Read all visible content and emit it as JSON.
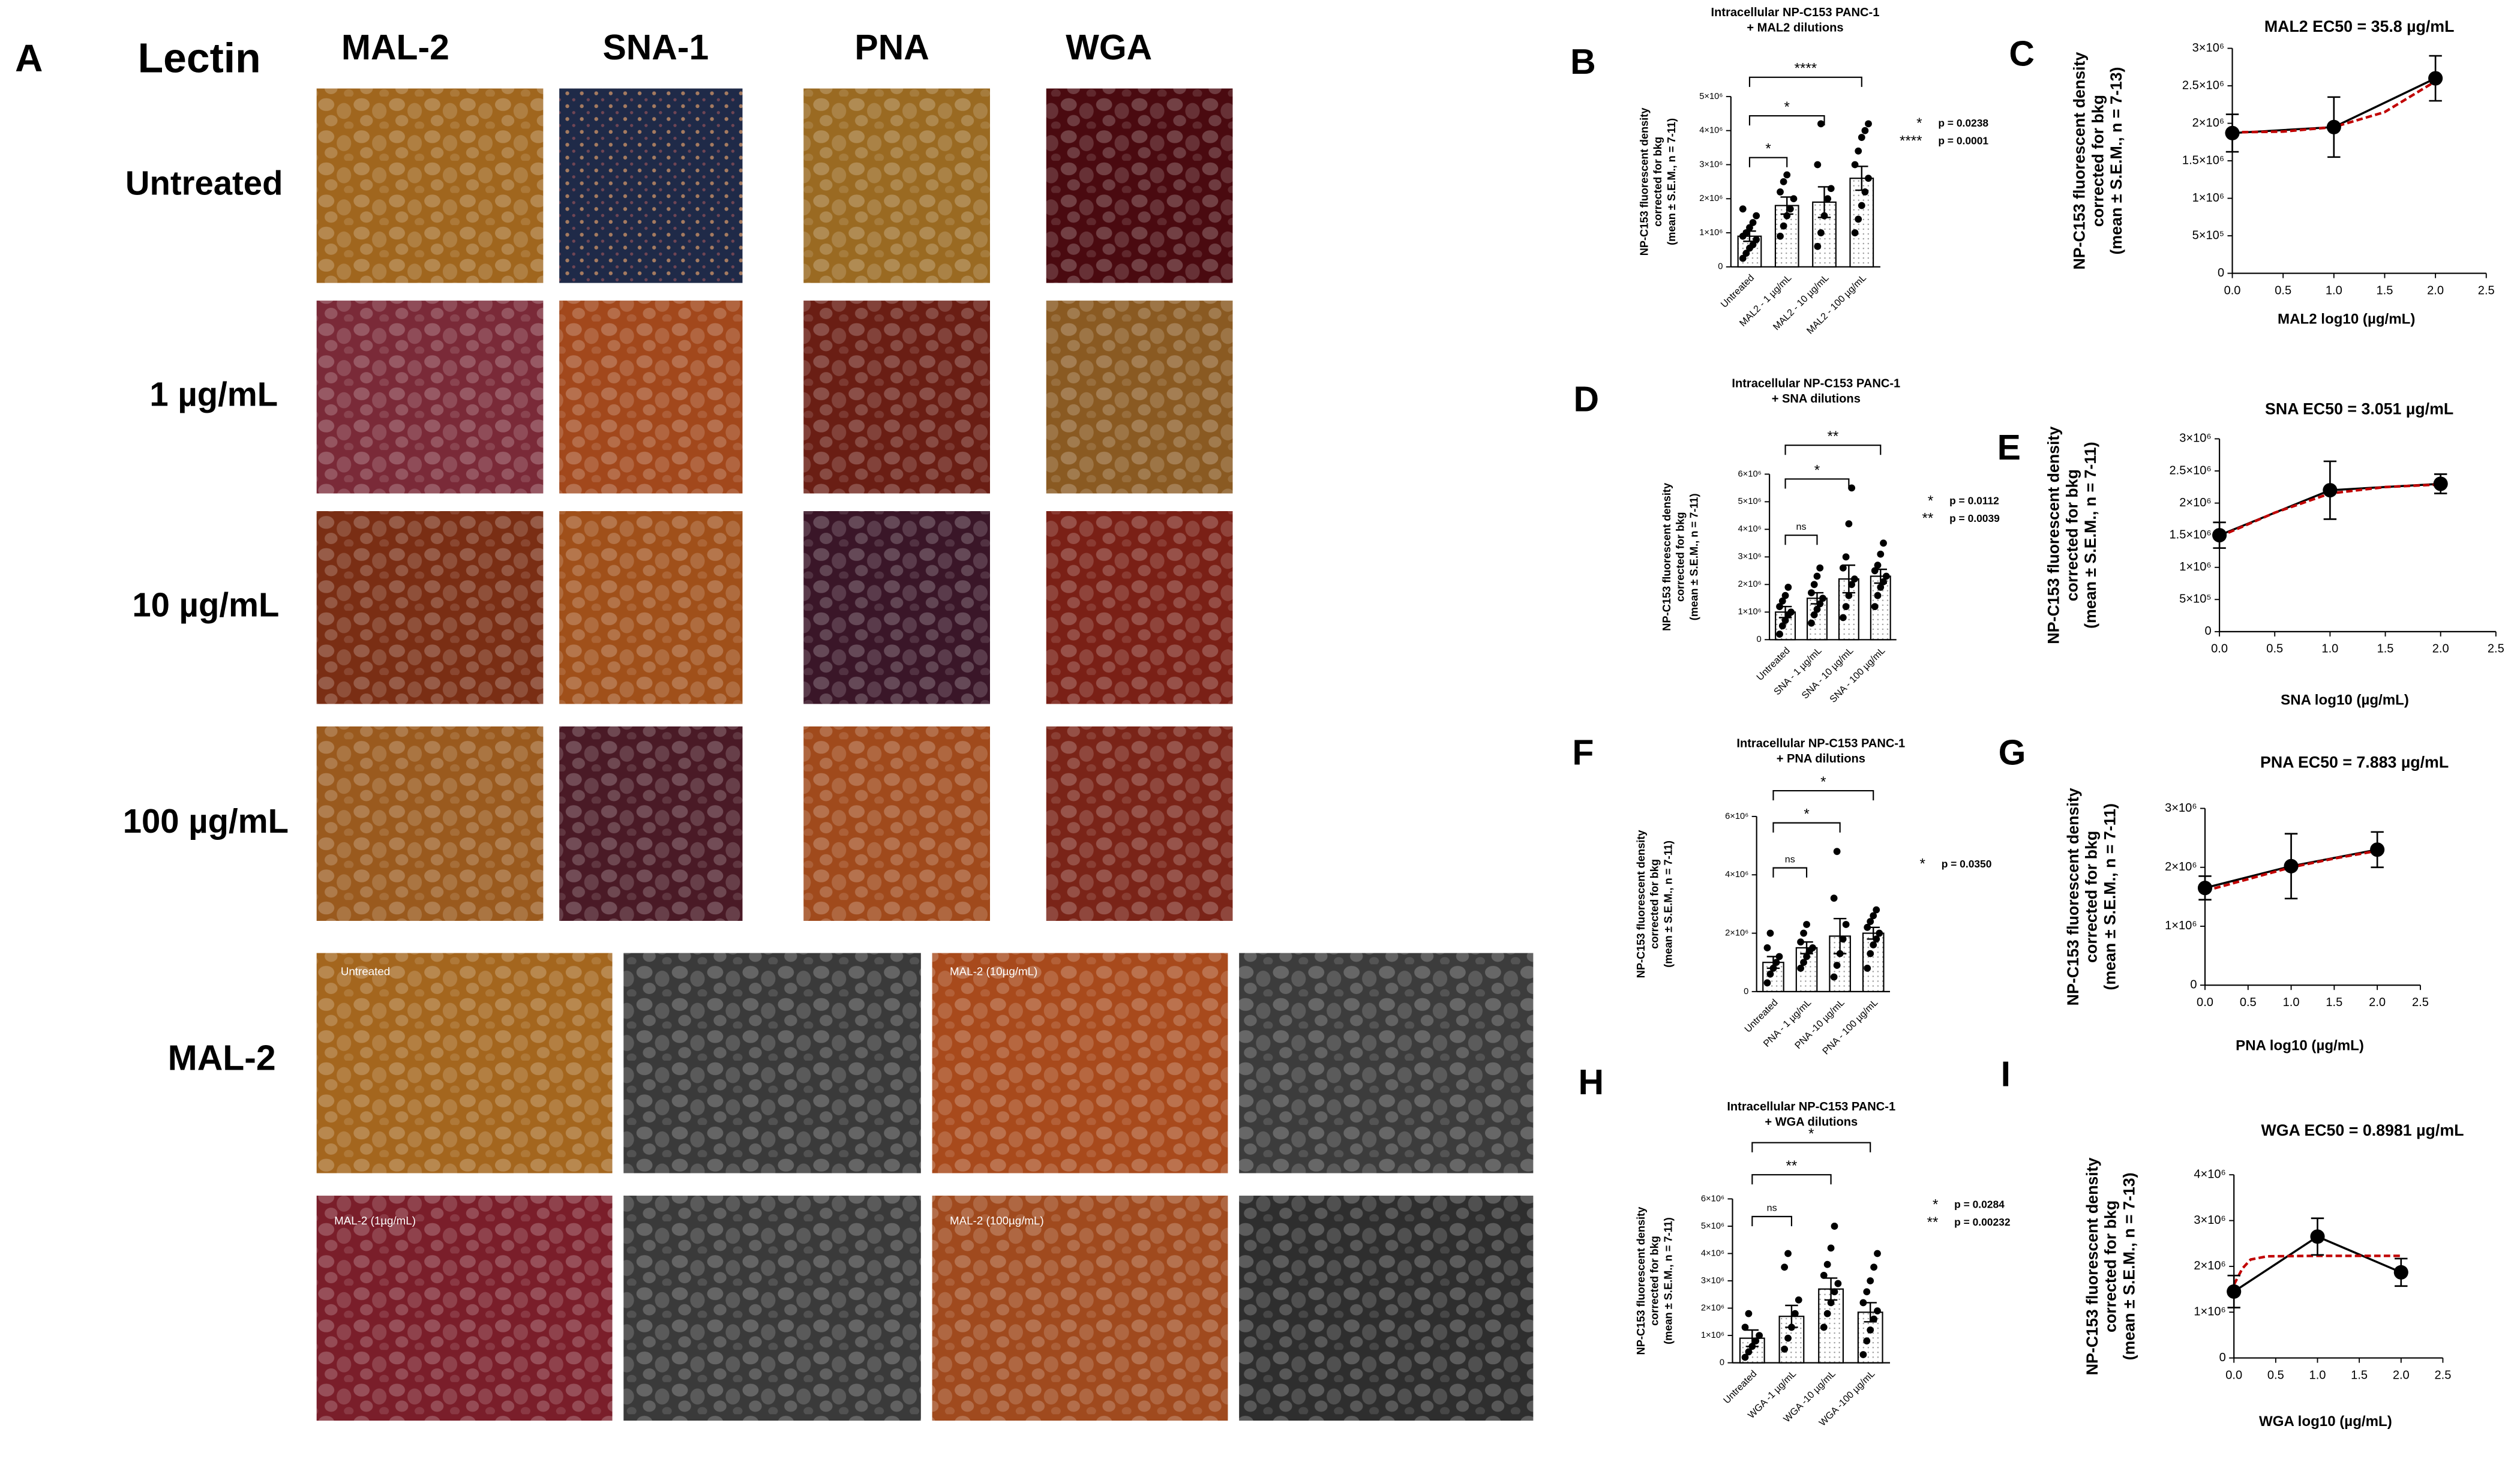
{
  "panel_a": {
    "letter": "A",
    "row_header": "Lectin",
    "columns": [
      "MAL-2",
      "SNA-1",
      "PNA",
      "WGA"
    ],
    "rows": [
      "Untreated",
      "1 µg/mL",
      "10 µg/mL",
      "100 µg/mL"
    ],
    "lower_label": "MAL-2",
    "lower_image_labels": [
      "Untreated",
      "MAL-2 (10µg/mL)",
      "MAL-2 (1µg/mL)",
      "MAL-2 (100µg/mL)"
    ]
  },
  "chart_data": [
    {
      "type": "bar",
      "panel": "B",
      "title": [
        "Intracellular NP-C153 PANC-1",
        "+ MAL2 dilutions"
      ],
      "y_label": [
        "NP-C153 fluorescent density",
        "corrected for bkg",
        "(mean ± S.E.M., n = 7-11)"
      ],
      "categories": [
        "Untreated",
        "MAL2 - 1 µg/mL",
        "MAL2 - 10 µg/mL",
        "MAL2 - 100 µg/mL"
      ],
      "values": [
        900000,
        1800000,
        1900000,
        2600000
      ],
      "errors": [
        150000,
        250000,
        450000,
        350000
      ],
      "points": [
        [
          250000,
          400000,
          550000,
          650000,
          800000,
          900000,
          1000000,
          1150000,
          1300000,
          1500000,
          1700000
        ],
        [
          900000,
          1200000,
          1500000,
          1700000,
          2000000,
          2200000,
          2500000,
          2700000
        ],
        [
          600000,
          1000000,
          1500000,
          2000000,
          2300000,
          3000000,
          4200000
        ],
        [
          1000000,
          1400000,
          1800000,
          2200000,
          2600000,
          3000000,
          3400000,
          3800000,
          4000000,
          4200000
        ]
      ],
      "ylim": [
        0,
        5000000
      ],
      "yticks": [
        0,
        {
          "value": 1000000,
          "label": "1×10⁶"
        },
        {
          "value": 2000000,
          "label": "2×10⁶"
        },
        {
          "value": 3000000,
          "label": "3×10⁶"
        },
        {
          "value": 4000000,
          "label": "4×10⁶"
        },
        {
          "value": 5000000,
          "label": "5×10⁶"
        }
      ],
      "brackets": [
        {
          "from": "Untreated",
          "to": "MAL2 - 1 µg/mL",
          "label": "*"
        },
        {
          "from": "Untreated",
          "to": "MAL2 - 10 µg/mL",
          "label": "*"
        },
        {
          "from": "Untreated",
          "to": "MAL2 - 100 µg/mL",
          "label": "****"
        }
      ],
      "p_values": [
        {
          "stars": "*",
          "text": "p = 0.0238"
        },
        {
          "stars": "****",
          "text": "p = 0.0001"
        }
      ]
    },
    {
      "type": "line",
      "panel": "C",
      "title": "MAL2 EC50  = 35.8 µg/mL",
      "x_label": "MAL2 log10 (µg/mL)",
      "y_label": [
        "NP-C153 fluorescent density",
        "corrected for bkg",
        "(mean ± S.E.M., n = 7-13)"
      ],
      "x": [
        0,
        1,
        2
      ],
      "values": [
        1870000,
        1950000,
        2600000
      ],
      "errors": [
        250000,
        400000,
        300000
      ],
      "color": "#000000",
      "fit": {
        "x": [
          0,
          0.5,
          1,
          1.5,
          2
        ],
        "values": [
          1880000,
          1890000,
          1950000,
          2150000,
          2560000
        ],
        "color": "#c00000"
      },
      "xlim": [
        0,
        2.5
      ],
      "xticks": [
        {
          "value": 0,
          "label": "0.0"
        },
        0.5,
        {
          "value": 1,
          "label": "1.0"
        },
        1.5,
        {
          "value": 2,
          "label": "2.0"
        },
        2.5
      ],
      "ylim": [
        0,
        3000000
      ],
      "yticks": [
        0,
        {
          "value": 500000,
          "label": "5×10⁵"
        },
        {
          "value": 1000000,
          "label": "1×10⁶"
        },
        {
          "value": 1500000,
          "label": "1.5×10⁶"
        },
        {
          "value": 2000000,
          "label": "2×10⁶"
        },
        {
          "value": 2500000,
          "label": "2.5×10⁶"
        },
        {
          "value": 3000000,
          "label": "3×10⁶"
        }
      ]
    },
    {
      "type": "bar",
      "panel": "D",
      "title": [
        "Intracellular NP-C153 PANC-1",
        "+ SNA dilutions"
      ],
      "y_label": [
        "NP-C153 fluorescent density",
        "corrected for bkg",
        "(mean ± S.E.M., n = 7-11)"
      ],
      "categories": [
        "Untreated",
        "SNA - 1 µg/mL",
        "SNA - 10 µg/mL",
        "SNA - 100 µg/mL"
      ],
      "values": [
        1000000,
        1500000,
        2200000,
        2300000
      ],
      "errors": [
        200000,
        200000,
        500000,
        250000
      ],
      "points": [
        [
          200000,
          500000,
          700000,
          900000,
          1000000,
          1200000,
          1400000,
          1600000,
          1900000
        ],
        [
          600000,
          900000,
          1100000,
          1300000,
          1500000,
          1700000,
          2000000,
          2300000,
          2600000
        ],
        [
          800000,
          1200000,
          1600000,
          2000000,
          2200000,
          2600000,
          3000000,
          4200000,
          5500000
        ],
        [
          1200000,
          1600000,
          1900000,
          2100000,
          2300000,
          2500000,
          2700000,
          3100000,
          3500000
        ]
      ],
      "ylim": [
        0,
        6000000
      ],
      "yticks": [
        0,
        {
          "value": 1000000,
          "label": "1×10⁶"
        },
        {
          "value": 2000000,
          "label": "2×10⁶"
        },
        {
          "value": 3000000,
          "label": "3×10⁶"
        },
        {
          "value": 4000000,
          "label": "4×10⁶"
        },
        {
          "value": 5000000,
          "label": "5×10⁶"
        },
        {
          "value": 6000000,
          "label": "6×10⁶"
        }
      ],
      "brackets": [
        {
          "from": "Untreated",
          "to": "SNA - 1 µg/mL",
          "label": "ns"
        },
        {
          "from": "Untreated",
          "to": "SNA - 10 µg/mL",
          "label": "*"
        },
        {
          "from": "Untreated",
          "to": "SNA - 100 µg/mL",
          "label": "**"
        }
      ],
      "p_values": [
        {
          "stars": "*",
          "text": "p = 0.0112"
        },
        {
          "stars": "**",
          "text": "p = 0.0039"
        }
      ]
    },
    {
      "type": "line",
      "panel": "E",
      "title": "SNA EC50 = 3.051 µg/mL",
      "x_label": "SNA log10 (µg/mL)",
      "y_label": [
        "NP-C153 fluorescent density",
        "corrected for bkg",
        "(mean ± S.E.M., n = 7-11)"
      ],
      "x": [
        0,
        1,
        2
      ],
      "values": [
        1500000,
        2200000,
        2300000
      ],
      "errors": [
        200000,
        450000,
        150000
      ],
      "color": "#000000",
      "fit": {
        "x": [
          0,
          0.5,
          1,
          1.5,
          2
        ],
        "values": [
          1480000,
          1850000,
          2150000,
          2250000,
          2290000
        ],
        "color": "#c00000"
      },
      "xlim": [
        0,
        2.5
      ],
      "xticks": [
        {
          "value": 0,
          "label": "0.0"
        },
        0.5,
        {
          "value": 1,
          "label": "1.0"
        },
        1.5,
        {
          "value": 2,
          "label": "2.0"
        },
        2.5
      ],
      "ylim": [
        0,
        3000000
      ],
      "yticks": [
        0,
        {
          "value": 500000,
          "label": "5×10⁵"
        },
        {
          "value": 1000000,
          "label": "1×10⁶"
        },
        {
          "value": 1500000,
          "label": "1.5×10⁶"
        },
        {
          "value": 2000000,
          "label": "2×10⁶"
        },
        {
          "value": 2500000,
          "label": "2.5×10⁶"
        },
        {
          "value": 3000000,
          "label": "3×10⁶"
        }
      ]
    },
    {
      "type": "bar",
      "panel": "F",
      "title": [
        "Intracellular NP-C153 PANC-1",
        "+ PNA dilutions"
      ],
      "y_label": [
        "NP-C153 fluorescent density",
        "corrected for bkg",
        "(mean ± S.E.M., n = 7-11)"
      ],
      "categories": [
        "Untreated",
        "PNA - 1 µg/mL",
        "PNA -10 µg/mL",
        "PNA - 100 µg/mL"
      ],
      "values": [
        1000000,
        1500000,
        1900000,
        2000000
      ],
      "errors": [
        200000,
        200000,
        600000,
        200000
      ],
      "points": [
        [
          300000,
          600000,
          800000,
          1000000,
          1200000,
          1500000,
          2000000
        ],
        [
          800000,
          1000000,
          1200000,
          1400000,
          1500000,
          1700000,
          2000000,
          2300000
        ],
        [
          500000,
          900000,
          1300000,
          1800000,
          2300000,
          3200000,
          4800000
        ],
        [
          800000,
          1300000,
          1600000,
          1800000,
          2000000,
          2200000,
          2400000,
          2600000,
          2800000
        ]
      ],
      "ylim": [
        0,
        6000000
      ],
      "yticks": [
        0,
        {
          "value": 2000000,
          "label": "2×10⁶"
        },
        {
          "value": 4000000,
          "label": "4×10⁶"
        },
        {
          "value": 6000000,
          "label": "6×10⁶"
        }
      ],
      "brackets": [
        {
          "from": "Untreated",
          "to": "PNA - 1 µg/mL",
          "label": "ns"
        },
        {
          "from": "Untreated",
          "to": "PNA -10 µg/mL",
          "label": "*"
        },
        {
          "from": "Untreated",
          "to": "PNA - 100 µg/mL",
          "label": "*"
        }
      ],
      "p_values": [
        {
          "stars": "*",
          "text": "p = 0.0350"
        }
      ]
    },
    {
      "type": "line",
      "panel": "G",
      "title": "PNA EC50 = 7.883 µg/mL",
      "x_label": "PNA log10 (µg/mL)",
      "y_label": [
        "NP-C153 fluorescent density",
        "corrected for bkg",
        "(mean ± S.E.M., n = 7-11)"
      ],
      "x": [
        0,
        1,
        2
      ],
      "values": [
        1650000,
        2020000,
        2300000
      ],
      "errors": [
        200000,
        550000,
        300000
      ],
      "color": "#000000",
      "fit": {
        "x": [
          0,
          0.5,
          1,
          1.5,
          2
        ],
        "values": [
          1600000,
          1800000,
          2000000,
          2150000,
          2280000
        ],
        "color": "#c00000"
      },
      "xlim": [
        0,
        2.5
      ],
      "xticks": [
        {
          "value": 0,
          "label": "0.0"
        },
        0.5,
        {
          "value": 1,
          "label": "1.0"
        },
        1.5,
        {
          "value": 2,
          "label": "2.0"
        },
        2.5
      ],
      "ylim": [
        0,
        3000000
      ],
      "yticks": [
        0,
        {
          "value": 1000000,
          "label": "1×10⁶"
        },
        {
          "value": 2000000,
          "label": "2×10⁶"
        },
        {
          "value": 3000000,
          "label": "3×10⁶"
        }
      ]
    },
    {
      "type": "bar",
      "panel": "H",
      "title": [
        "Intracellular NP-C153 PANC-1",
        "+ WGA dilutions"
      ],
      "y_label": [
        "NP-C153 fluorescent density",
        "corrected for bkg",
        "(mean ± S.E.M., n = 7-11)"
      ],
      "categories": [
        "Untreated",
        "WGA -1 µg/mL",
        "WGA -10 µg/mL",
        "WGA -100 µg/mL"
      ],
      "values": [
        900000,
        1700000,
        2700000,
        1850000
      ],
      "errors": [
        300000,
        400000,
        400000,
        350000
      ],
      "points": [
        [
          200000,
          400000,
          600000,
          800000,
          1000000,
          1300000,
          1800000
        ],
        [
          500000,
          900000,
          1300000,
          1800000,
          2300000,
          3500000,
          4000000
        ],
        [
          1300000,
          1800000,
          2200000,
          2600000,
          2900000,
          3200000,
          3600000,
          4200000,
          5000000
        ],
        [
          300000,
          800000,
          1200000,
          1600000,
          1900000,
          2200000,
          2600000,
          3000000,
          3500000,
          4000000
        ]
      ],
      "ylim": [
        0,
        6000000
      ],
      "yticks": [
        0,
        {
          "value": 1000000,
          "label": "1×10⁶"
        },
        {
          "value": 2000000,
          "label": "2×10⁶"
        },
        {
          "value": 3000000,
          "label": "3×10⁶"
        },
        {
          "value": 4000000,
          "label": "4×10⁶"
        },
        {
          "value": 5000000,
          "label": "5×10⁶"
        },
        {
          "value": 6000000,
          "label": "6×10⁶"
        }
      ],
      "brackets": [
        {
          "from": "Untreated",
          "to": "WGA -1 µg/mL",
          "label": "ns"
        },
        {
          "from": "Untreated",
          "to": "WGA -10 µg/mL",
          "label": "**"
        },
        {
          "from": "Untreated",
          "to": "WGA -100 µg/mL",
          "label": "*"
        }
      ],
      "p_values": [
        {
          "stars": "*",
          "text": "p = 0.0284"
        },
        {
          "stars": "**",
          "text": "p = 0.00232"
        }
      ]
    },
    {
      "type": "line",
      "panel": "I",
      "title": "WGA  EC50 = 0.8981 µg/mL",
      "x_label": "WGA log10 (µg/mL)",
      "y_label": [
        "NP-C153 fluorescent density",
        "corrected for bkg",
        "(mean ± S.E.M., n = 7-13)"
      ],
      "x": [
        0,
        1,
        2
      ],
      "values": [
        1450000,
        2650000,
        1870000
      ],
      "errors": [
        350000,
        400000,
        300000
      ],
      "color": "#000000",
      "fit": {
        "x": [
          0,
          0.1,
          0.2,
          0.4,
          1,
          1.5,
          2
        ],
        "values": [
          1600000,
          1950000,
          2150000,
          2220000,
          2230000,
          2230000,
          2230000
        ],
        "color": "#c00000"
      },
      "xlim": [
        0,
        2.5
      ],
      "xticks": [
        {
          "value": 0,
          "label": "0.0"
        },
        0.5,
        {
          "value": 1,
          "label": "1.0"
        },
        1.5,
        {
          "value": 2,
          "label": "2.0"
        },
        2.5
      ],
      "ylim": [
        0,
        4000000
      ],
      "yticks": [
        0,
        {
          "value": 1000000,
          "label": "1×10⁶"
        },
        {
          "value": 2000000,
          "label": "2×10⁶"
        },
        {
          "value": 3000000,
          "label": "3×10⁶"
        },
        {
          "value": 4000000,
          "label": "4×10⁶"
        }
      ]
    }
  ]
}
